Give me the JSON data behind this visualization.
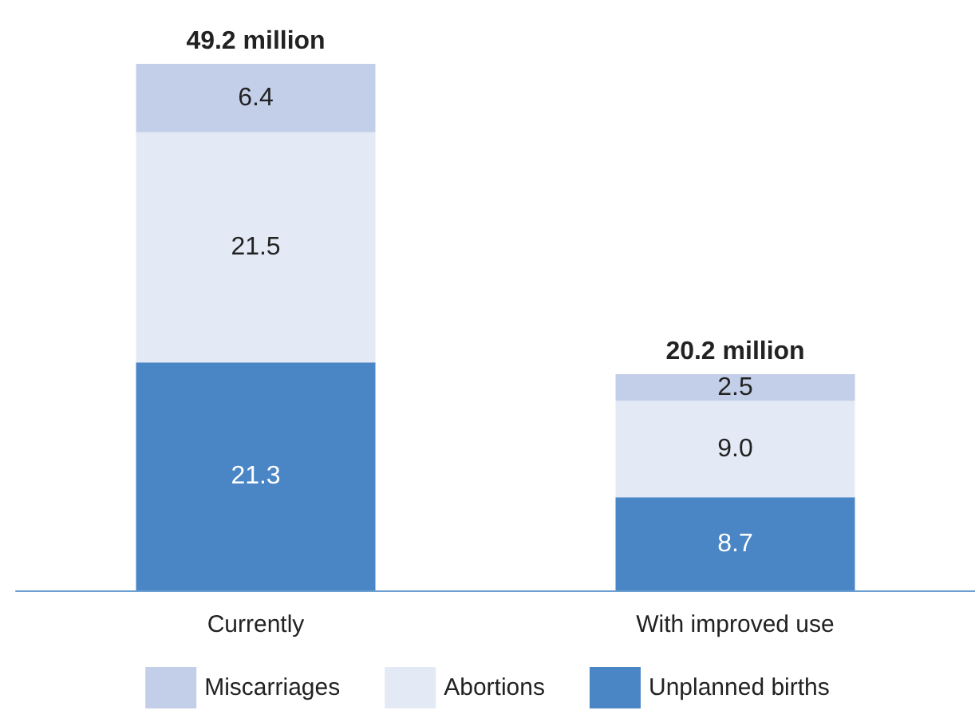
{
  "chart_data": {
    "type": "bar",
    "stacked": true,
    "legend": "bottom",
    "categories": [
      "Currently",
      "With improved use"
    ],
    "series": [
      {
        "name": "Unplanned births",
        "color": "#4a86c6",
        "values": [
          21.3,
          8.7
        ],
        "value_labels": [
          "21.3",
          "8.7"
        ]
      },
      {
        "name": "Abortions",
        "color": "#e3eaf6",
        "values": [
          21.5,
          9.0
        ],
        "value_labels": [
          "21.5",
          "9.0"
        ]
      },
      {
        "name": "Miscarriages",
        "color": "#c3cfe9",
        "values": [
          6.4,
          2.5
        ],
        "value_labels": [
          "6.4",
          "2.5"
        ]
      }
    ],
    "totals": [
      "49.2 million",
      "20.2 million"
    ]
  }
}
